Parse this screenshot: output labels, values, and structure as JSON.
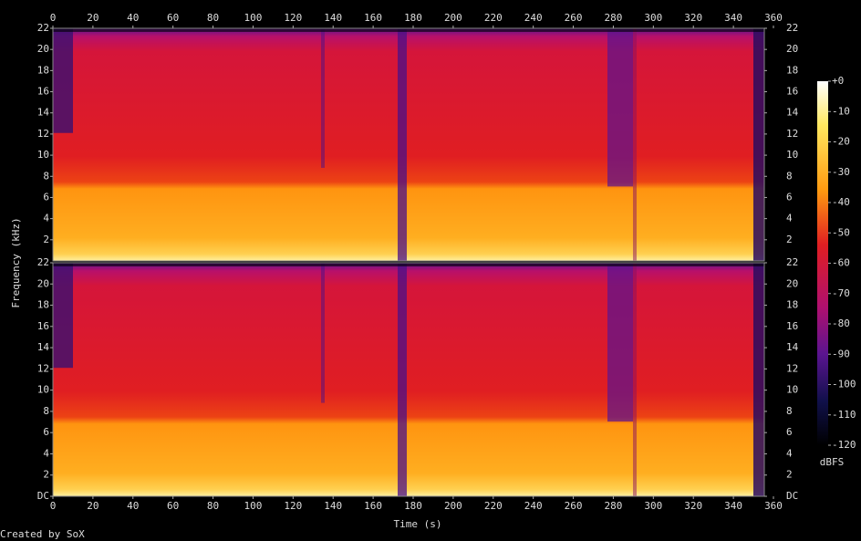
{
  "footer": "Created by SoX",
  "colorbar": {
    "label": "dBFS",
    "lim": [
      -120,
      0
    ],
    "ticks": [
      {
        "value": 0,
        "label": "+0"
      },
      -10,
      -20,
      -30,
      -40,
      -50,
      -60,
      -70,
      -80,
      -90,
      -100,
      -110,
      -120
    ]
  },
  "chart_data": [
    {
      "type": "spectrogram",
      "ylabel": "Frequency (kHz)",
      "xlim": [
        0,
        360
      ],
      "xticks": [
        0,
        20,
        40,
        60,
        80,
        100,
        120,
        140,
        160,
        180,
        200,
        220,
        240,
        260,
        280,
        300,
        320,
        340,
        360
      ],
      "ylim": [
        0,
        22
      ],
      "yticks": [
        2,
        4,
        6,
        8,
        10,
        12,
        14,
        16,
        18,
        20,
        22
      ]
    },
    {
      "type": "spectrogram",
      "xlabel": "Time (s)",
      "xlim": [
        0,
        360
      ],
      "xticks": [
        0,
        20,
        40,
        60,
        80,
        100,
        120,
        140,
        160,
        180,
        200,
        220,
        240,
        260,
        280,
        300,
        320,
        340,
        360
      ],
      "ylim": [
        0,
        22
      ],
      "yticks": [
        {
          "value": 0,
          "label": "DC"
        },
        2,
        4,
        6,
        8,
        10,
        12,
        14,
        16,
        18,
        20,
        22
      ]
    }
  ]
}
